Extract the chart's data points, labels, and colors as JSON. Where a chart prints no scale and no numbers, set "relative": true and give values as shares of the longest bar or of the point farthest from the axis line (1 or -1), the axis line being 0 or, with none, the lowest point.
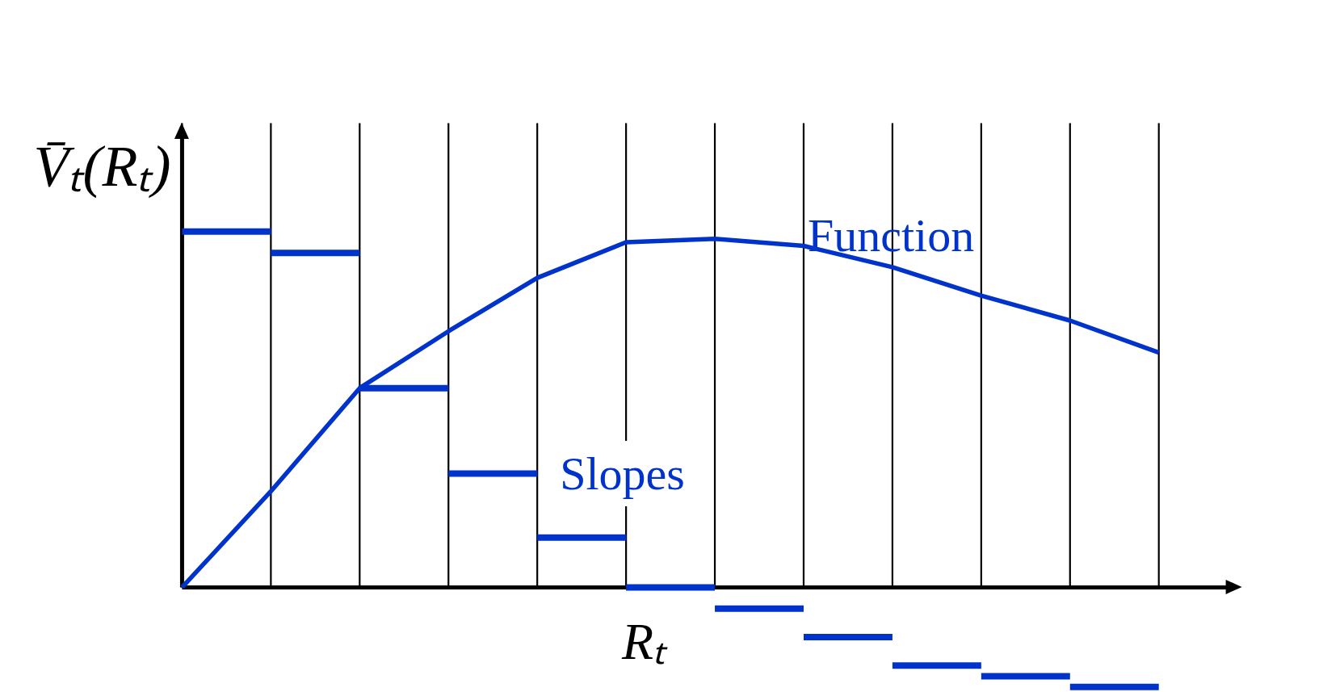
{
  "chart_data": {
    "type": "line",
    "relative": true,
    "grid": "x",
    "tick_labels": false,
    "xlabel": "Rₜ",
    "ylabel": "V̄ₜ(Rₜ)",
    "categories": [
      null,
      null,
      null,
      null,
      null,
      null,
      null,
      null,
      null,
      null,
      null,
      null
    ],
    "series": [
      {
        "name": "Function",
        "color": "#0033cc",
        "values": [
          0,
          0.27,
          0.56,
          0.72,
          0.87,
          0.97,
          0.98,
          0.96,
          0.9,
          0.82,
          0.75,
          0.66
        ]
      },
      {
        "name": "Slopes",
        "type": "step",
        "color": "#0033cc",
        "values": [
          1,
          0.94,
          0.56,
          0.32,
          0.14,
          0,
          -0.06,
          -0.14,
          -0.22,
          -0.25,
          -0.28,
          -0.28
        ]
      }
    ]
  }
}
